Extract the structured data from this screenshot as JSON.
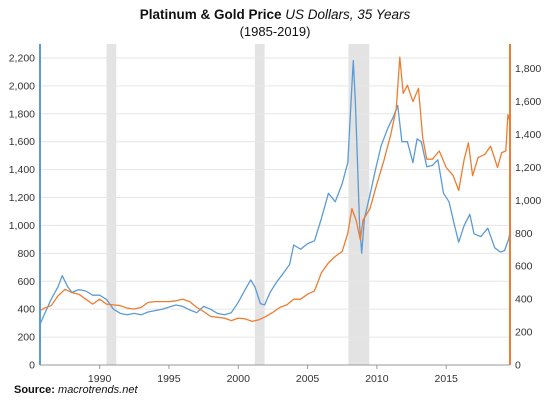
{
  "title": {
    "main": "Platinum & Gold Price",
    "suffix": "US Dollars, 35 Years"
  },
  "subtitle": "(1985-2019)",
  "source": {
    "label": "Source:",
    "value": "macrotrends.net"
  },
  "colors": {
    "platinum": "#5b9bd5",
    "gold": "#ed7d31",
    "recession": "#e3e3e3",
    "grid": "#e6e6e6"
  },
  "chart_data": {
    "type": "line",
    "xlim": [
      1985.7,
      2019.6
    ],
    "x_ticks": [
      1990,
      1995,
      2000,
      2005,
      2010,
      2015
    ],
    "left_axis": {
      "ylim": [
        0,
        2300
      ],
      "ticks": [
        0,
        200,
        400,
        600,
        800,
        1000,
        1200,
        1400,
        1600,
        1800,
        2000,
        2200
      ]
    },
    "right_axis": {
      "ylim": [
        0,
        1950
      ],
      "ticks": [
        0,
        200,
        400,
        600,
        800,
        1000,
        1200,
        1400,
        1600,
        1800
      ]
    },
    "recessions": [
      [
        1990.5,
        1991.2
      ],
      [
        2001.2,
        2001.9
      ],
      [
        2007.95,
        2009.45
      ]
    ],
    "grid": "horizontal",
    "series": [
      {
        "key": "platinum",
        "axis": "left",
        "points": [
          [
            1985.7,
            290
          ],
          [
            1986.0,
            360
          ],
          [
            1986.5,
            470
          ],
          [
            1987.0,
            560
          ],
          [
            1987.3,
            640
          ],
          [
            1987.7,
            560
          ],
          [
            1988.0,
            520
          ],
          [
            1988.5,
            540
          ],
          [
            1989.0,
            530
          ],
          [
            1989.5,
            500
          ],
          [
            1990.0,
            500
          ],
          [
            1990.5,
            470
          ],
          [
            1991.0,
            400
          ],
          [
            1991.5,
            370
          ],
          [
            1992.0,
            360
          ],
          [
            1992.5,
            370
          ],
          [
            1993.0,
            360
          ],
          [
            1993.5,
            380
          ],
          [
            1994.0,
            390
          ],
          [
            1994.5,
            400
          ],
          [
            1995.0,
            415
          ],
          [
            1995.5,
            430
          ],
          [
            1996.0,
            420
          ],
          [
            1996.5,
            395
          ],
          [
            1997.0,
            375
          ],
          [
            1997.5,
            420
          ],
          [
            1998.0,
            400
          ],
          [
            1998.5,
            370
          ],
          [
            1999.0,
            360
          ],
          [
            1999.5,
            375
          ],
          [
            2000.0,
            450
          ],
          [
            2000.5,
            540
          ],
          [
            2000.9,
            610
          ],
          [
            2001.2,
            560
          ],
          [
            2001.6,
            440
          ],
          [
            2001.9,
            430
          ],
          [
            2002.3,
            520
          ],
          [
            2002.8,
            600
          ],
          [
            2003.2,
            650
          ],
          [
            2003.7,
            720
          ],
          [
            2004.0,
            860
          ],
          [
            2004.5,
            830
          ],
          [
            2005.0,
            870
          ],
          [
            2005.5,
            890
          ],
          [
            2006.0,
            1050
          ],
          [
            2006.5,
            1230
          ],
          [
            2007.0,
            1170
          ],
          [
            2007.5,
            1300
          ],
          [
            2007.9,
            1450
          ],
          [
            2008.2,
            2000
          ],
          [
            2008.3,
            2180
          ],
          [
            2008.45,
            1880
          ],
          [
            2008.6,
            1450
          ],
          [
            2008.75,
            1000
          ],
          [
            2008.9,
            800
          ],
          [
            2009.1,
            1050
          ],
          [
            2009.5,
            1220
          ],
          [
            2009.9,
            1400
          ],
          [
            2010.3,
            1570
          ],
          [
            2010.8,
            1700
          ],
          [
            2011.2,
            1780
          ],
          [
            2011.5,
            1860
          ],
          [
            2011.8,
            1600
          ],
          [
            2012.2,
            1600
          ],
          [
            2012.6,
            1450
          ],
          [
            2012.9,
            1620
          ],
          [
            2013.2,
            1600
          ],
          [
            2013.6,
            1420
          ],
          [
            2014.0,
            1430
          ],
          [
            2014.4,
            1470
          ],
          [
            2014.8,
            1230
          ],
          [
            2015.2,
            1170
          ],
          [
            2015.6,
            1000
          ],
          [
            2015.9,
            880
          ],
          [
            2016.3,
            1000
          ],
          [
            2016.7,
            1080
          ],
          [
            2017.0,
            940
          ],
          [
            2017.5,
            920
          ],
          [
            2018.0,
            980
          ],
          [
            2018.5,
            840
          ],
          [
            2018.9,
            810
          ],
          [
            2019.2,
            820
          ],
          [
            2019.5,
            900
          ],
          [
            2019.6,
            950
          ]
        ]
      },
      {
        "key": "gold",
        "axis": "right",
        "points": [
          [
            1985.7,
            330
          ],
          [
            1986.0,
            345
          ],
          [
            1986.5,
            360
          ],
          [
            1987.0,
            420
          ],
          [
            1987.5,
            460
          ],
          [
            1988.0,
            440
          ],
          [
            1988.5,
            430
          ],
          [
            1989.0,
            400
          ],
          [
            1989.5,
            370
          ],
          [
            1990.0,
            400
          ],
          [
            1990.5,
            370
          ],
          [
            1991.0,
            365
          ],
          [
            1991.5,
            360
          ],
          [
            1992.0,
            345
          ],
          [
            1992.5,
            340
          ],
          [
            1993.0,
            350
          ],
          [
            1993.5,
            380
          ],
          [
            1994.0,
            385
          ],
          [
            1994.5,
            385
          ],
          [
            1995.0,
            385
          ],
          [
            1995.5,
            390
          ],
          [
            1996.0,
            400
          ],
          [
            1996.5,
            385
          ],
          [
            1997.0,
            350
          ],
          [
            1997.5,
            325
          ],
          [
            1998.0,
            295
          ],
          [
            1998.5,
            290
          ],
          [
            1999.0,
            285
          ],
          [
            1999.5,
            270
          ],
          [
            2000.0,
            285
          ],
          [
            2000.5,
            280
          ],
          [
            2001.0,
            265
          ],
          [
            2001.5,
            275
          ],
          [
            2002.0,
            295
          ],
          [
            2002.5,
            320
          ],
          [
            2003.0,
            350
          ],
          [
            2003.5,
            365
          ],
          [
            2004.0,
            400
          ],
          [
            2004.5,
            400
          ],
          [
            2005.0,
            430
          ],
          [
            2005.5,
            450
          ],
          [
            2006.0,
            560
          ],
          [
            2006.5,
            620
          ],
          [
            2007.0,
            660
          ],
          [
            2007.5,
            690
          ],
          [
            2007.9,
            800
          ],
          [
            2008.2,
            950
          ],
          [
            2008.5,
            880
          ],
          [
            2008.8,
            760
          ],
          [
            2009.0,
            880
          ],
          [
            2009.5,
            950
          ],
          [
            2010.0,
            1100
          ],
          [
            2010.5,
            1240
          ],
          [
            2011.0,
            1400
          ],
          [
            2011.4,
            1560
          ],
          [
            2011.65,
            1870
          ],
          [
            2011.9,
            1650
          ],
          [
            2012.2,
            1700
          ],
          [
            2012.6,
            1600
          ],
          [
            2013.0,
            1680
          ],
          [
            2013.3,
            1380
          ],
          [
            2013.6,
            1250
          ],
          [
            2014.0,
            1250
          ],
          [
            2014.5,
            1300
          ],
          [
            2015.0,
            1200
          ],
          [
            2015.5,
            1150
          ],
          [
            2015.9,
            1060
          ],
          [
            2016.3,
            1250
          ],
          [
            2016.6,
            1350
          ],
          [
            2016.9,
            1150
          ],
          [
            2017.3,
            1260
          ],
          [
            2017.8,
            1280
          ],
          [
            2018.2,
            1330
          ],
          [
            2018.7,
            1200
          ],
          [
            2019.0,
            1290
          ],
          [
            2019.3,
            1300
          ],
          [
            2019.45,
            1520
          ],
          [
            2019.6,
            1480
          ]
        ]
      }
    ]
  }
}
